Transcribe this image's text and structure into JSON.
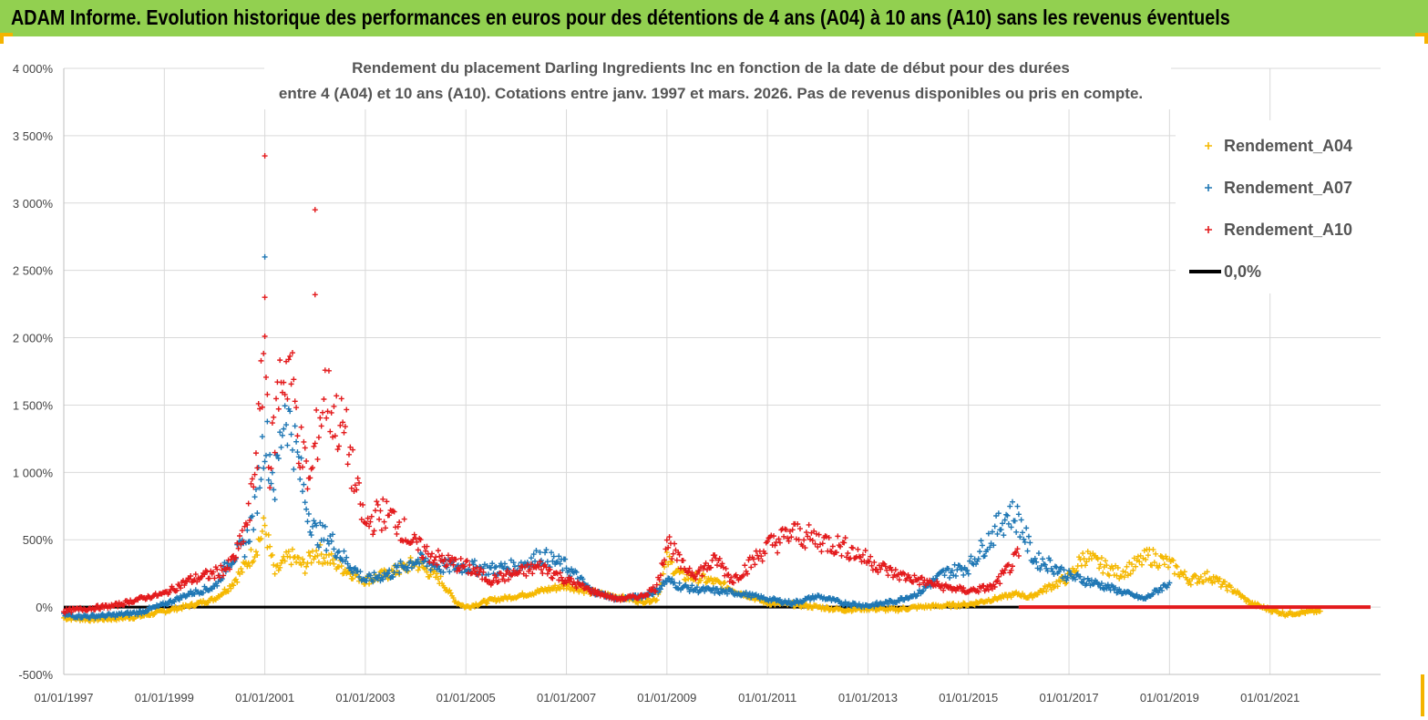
{
  "header": {
    "title": "ADAM Informe. Evolution historique des performances en euros pour des détentions de 4 ans (A04) à 10 ans (A10) sans les revenus éventuels"
  },
  "colors": {
    "banner": "#92d050",
    "accent_corner": "#f4b400",
    "A04": "#f5b800",
    "A07": "#1f77b4",
    "A10": "#e31a1c",
    "zero": "#000000",
    "grid": "#d9d9d9"
  },
  "chart_data": {
    "type": "scatter",
    "title_lines": [
      "Rendement du placement Darling Ingredients Inc en fonction de la date de début pour des durées",
      "entre 4 (A04) et 10 ans (A10). Cotations entre janv. 1997 et mars. 2026. Pas de revenus disponibles ou pris en compte."
    ],
    "xlabel": "",
    "ylabel": "",
    "x_range": [
      1997.0,
      2023.2
    ],
    "ylim": [
      -500,
      4000
    ],
    "y_ticks": [
      -500,
      0,
      500,
      1000,
      1500,
      2000,
      2500,
      3000,
      3500,
      4000
    ],
    "y_tick_labels": [
      "-500%",
      "0%",
      "500%",
      "1 000%",
      "1 500%",
      "2 000%",
      "2 500%",
      "3 000%",
      "3 500%",
      "4 000%"
    ],
    "x_ticks": [
      1997,
      1999,
      2001,
      2003,
      2005,
      2007,
      2009,
      2011,
      2013,
      2015,
      2017,
      2019,
      2021
    ],
    "x_tick_labels": [
      "01/01/1997",
      "01/01/1999",
      "01/01/2001",
      "01/01/2003",
      "01/01/2005",
      "01/01/2007",
      "01/01/2009",
      "01/01/2011",
      "01/01/2013",
      "01/01/2015",
      "01/01/2017",
      "01/01/2019",
      "01/01/2021"
    ],
    "grid": true,
    "legend_position": "top-right",
    "legend": [
      {
        "label": "Rendement_A04",
        "marker": "+",
        "color_key": "A04"
      },
      {
        "label": "Rendement_A07",
        "marker": "+",
        "color_key": "A07"
      },
      {
        "label": "Rendement_A10",
        "marker": "+",
        "color_key": "A10"
      },
      {
        "label": "0,0%",
        "marker": "line",
        "color_key": "zero"
      }
    ],
    "series": [
      {
        "name": "Rendement_A04",
        "color_key": "A04",
        "x": [
          1997.0,
          1997.5,
          1998.0,
          1998.5,
          1999.0,
          1999.5,
          2000.0,
          2000.3,
          2000.6,
          2000.8,
          2001.0,
          2001.2,
          2001.5,
          2001.8,
          2002.0,
          2002.3,
          2002.6,
          2003.0,
          2003.5,
          2004.0,
          2004.5,
          2004.8,
          2005.0,
          2005.5,
          2006.0,
          2006.5,
          2007.0,
          2007.5,
          2008.0,
          2008.5,
          2008.8,
          2009.0,
          2009.3,
          2009.6,
          2010.0,
          2010.5,
          2011.0,
          2011.5,
          2012.0,
          2012.5,
          2013.0,
          2013.5,
          2014.0,
          2014.5,
          2015.0,
          2015.5,
          2016.0,
          2016.2,
          2016.5,
          2017.0,
          2017.3,
          2017.6,
          2018.0,
          2018.3,
          2018.6,
          2019.0,
          2019.4,
          2019.8,
          2020.0,
          2020.3,
          2020.6,
          2021.0,
          2021.3,
          2021.6,
          2022.0
        ],
        "y": [
          -80,
          -90,
          -85,
          -70,
          -30,
          10,
          60,
          150,
          300,
          420,
          600,
          250,
          380,
          300,
          420,
          350,
          280,
          200,
          250,
          330,
          200,
          40,
          0,
          50,
          80,
          120,
          160,
          110,
          80,
          40,
          60,
          350,
          230,
          220,
          180,
          100,
          30,
          20,
          0,
          -20,
          -10,
          -20,
          0,
          10,
          20,
          60,
          100,
          70,
          130,
          220,
          380,
          320,
          250,
          310,
          380,
          320,
          200,
          230,
          180,
          120,
          30,
          -20,
          -50,
          -40,
          -30
        ]
      },
      {
        "name": "Rendement_A07",
        "color_key": "A07",
        "x": [
          1997.0,
          1997.5,
          1998.0,
          1998.5,
          1999.0,
          1999.5,
          2000.0,
          2000.3,
          2000.6,
          2000.8,
          2001.0,
          2001.2,
          2001.4,
          2001.6,
          2001.8,
          2002.0,
          2002.3,
          2002.6,
          2003.0,
          2003.5,
          2004.0,
          2004.5,
          2005.0,
          2005.5,
          2006.0,
          2006.5,
          2007.0,
          2007.5,
          2008.0,
          2008.5,
          2008.8,
          2009.0,
          2009.3,
          2009.6,
          2010.0,
          2010.5,
          2011.0,
          2011.5,
          2012.0,
          2012.5,
          2013.0,
          2013.5,
          2014.0,
          2014.5,
          2015.0,
          2015.3,
          2015.6,
          2015.8,
          2016.0,
          2016.3,
          2016.6,
          2017.0,
          2017.5,
          2018.0,
          2018.5,
          2019.0
        ],
        "y": [
          -60,
          -70,
          -60,
          -40,
          20,
          100,
          150,
          350,
          450,
          700,
          1300,
          900,
          1500,
          1200,
          800,
          550,
          500,
          350,
          200,
          250,
          350,
          300,
          300,
          280,
          300,
          380,
          300,
          120,
          60,
          80,
          120,
          200,
          150,
          130,
          120,
          100,
          60,
          30,
          80,
          30,
          10,
          40,
          100,
          250,
          300,
          450,
          600,
          700,
          650,
          350,
          320,
          230,
          180,
          120,
          60,
          180
        ]
      },
      {
        "name": "Rendement_A10",
        "color_key": "A10",
        "x": [
          1997.0,
          1997.5,
          1998.0,
          1998.5,
          1999.0,
          1999.5,
          2000.0,
          2000.3,
          2000.5,
          2000.7,
          2000.9,
          2001.0,
          2001.1,
          2001.3,
          2001.5,
          2001.7,
          2001.9,
          2002.0,
          2002.2,
          2002.4,
          2002.6,
          2002.8,
          2003.0,
          2003.3,
          2003.6,
          2004.0,
          2004.5,
          2005.0,
          2005.5,
          2006.0,
          2006.5,
          2007.0,
          2007.5,
          2008.0,
          2008.5,
          2008.8,
          2009.0,
          2009.3,
          2009.6,
          2010.0,
          2010.3,
          2010.6,
          2011.0,
          2011.5,
          2012.0,
          2012.5,
          2013.0,
          2013.5,
          2014.0,
          2014.5,
          2015.0,
          2015.5,
          2016.0
        ],
        "y": [
          -30,
          -10,
          10,
          60,
          100,
          200,
          250,
          300,
          450,
          700,
          1400,
          2000,
          1000,
          1700,
          1800,
          1200,
          900,
          1200,
          1600,
          1400,
          1300,
          900,
          600,
          700,
          650,
          450,
          350,
          300,
          200,
          250,
          300,
          200,
          120,
          60,
          80,
          150,
          500,
          300,
          250,
          350,
          200,
          300,
          450,
          550,
          500,
          450,
          350,
          250,
          200,
          150,
          120,
          150,
          380
        ]
      },
      {
        "name": "Rendement_A10_zero_segment",
        "color_key": "A10",
        "x": [
          2016.0,
          2023.0
        ],
        "y": [
          0,
          0
        ]
      }
    ],
    "outliers": [
      {
        "series": "Rendement_A07",
        "x": 2001.0,
        "y": 2600
      },
      {
        "series": "Rendement_A10",
        "x": 2001.0,
        "y": 3350
      },
      {
        "series": "Rendement_A10",
        "x": 2002.0,
        "y": 2950
      },
      {
        "series": "Rendement_A10",
        "x": 2002.0,
        "y": 2320
      },
      {
        "series": "Rendement_A10",
        "x": 2001.0,
        "y": 2300
      }
    ]
  }
}
